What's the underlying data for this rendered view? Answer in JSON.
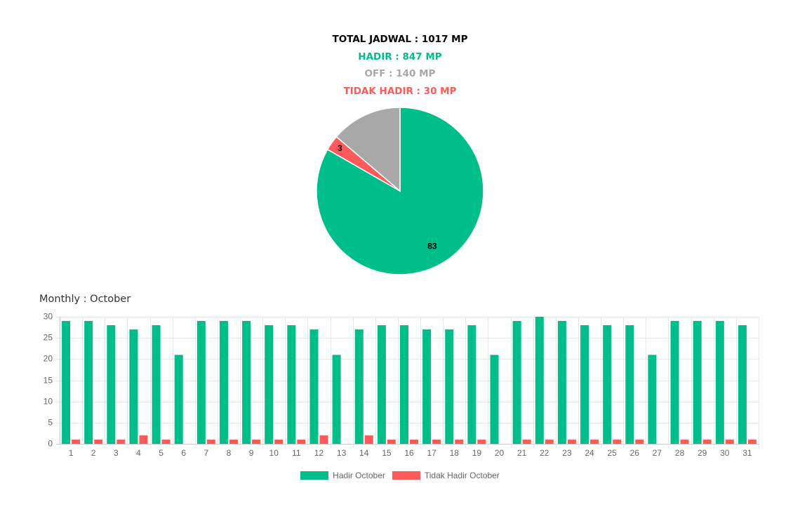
{
  "summary": {
    "total": {
      "text": "TOTAL JADWAL : 1017 MP",
      "color": "#000000"
    },
    "hadir": {
      "text": "HADIR : 847 MP",
      "color": "#00be8a"
    },
    "off": {
      "text": "OFF : 140 MP",
      "color": "#a8a8a8"
    },
    "tidak_hadir": {
      "text": "TIDAK HADIR : 30 MP",
      "color": "#ff5a5a"
    }
  },
  "monthly_title": "Monthly : October",
  "chart_data": [
    {
      "type": "pie",
      "slices": [
        {
          "name": "HADIR",
          "value": 847,
          "percent_label": "83",
          "color": "#00be8a"
        },
        {
          "name": "TIDAK HADIR",
          "value": 30,
          "percent_label": "3",
          "color": "#ff5a5a"
        },
        {
          "name": "OFF",
          "value": 140,
          "percent_label": "",
          "color": "#a8a8a8"
        }
      ]
    },
    {
      "type": "bar",
      "title": "Monthly : October",
      "categories": [
        "1",
        "2",
        "3",
        "4",
        "5",
        "6",
        "7",
        "8",
        "9",
        "10",
        "11",
        "12",
        "13",
        "14",
        "15",
        "16",
        "17",
        "18",
        "19",
        "20",
        "21",
        "22",
        "23",
        "24",
        "25",
        "26",
        "27",
        "28",
        "29",
        "30",
        "31"
      ],
      "series": [
        {
          "name": "Hadir October",
          "color": "#00be8a",
          "values": [
            29,
            29,
            28,
            27,
            28,
            21,
            29,
            29,
            29,
            28,
            28,
            27,
            21,
            27,
            28,
            28,
            27,
            27,
            28,
            21,
            29,
            30,
            29,
            28,
            28,
            28,
            21,
            29,
            29,
            29,
            28
          ]
        },
        {
          "name": "Tidak Hadir October",
          "color": "#ff5a5a",
          "values": [
            1,
            1,
            1,
            2,
            1,
            0,
            1,
            1,
            1,
            1,
            1,
            2,
            0,
            2,
            1,
            1,
            1,
            1,
            1,
            0,
            1,
            1,
            1,
            1,
            1,
            1,
            0,
            1,
            1,
            1,
            1
          ]
        }
      ],
      "ylim": [
        0,
        30
      ],
      "yticks": [
        "0",
        "5",
        "10",
        "15",
        "20",
        "25",
        "30"
      ],
      "grid": true,
      "legend_position": "bottom"
    }
  ]
}
